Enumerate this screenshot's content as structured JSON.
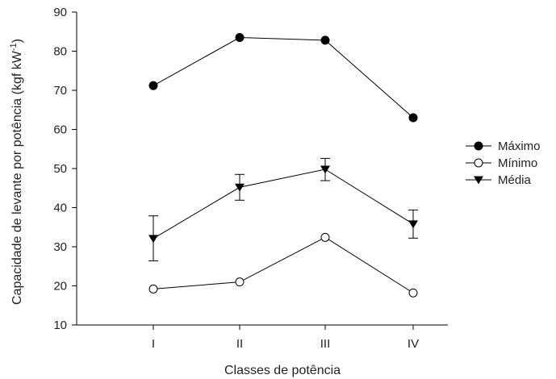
{
  "chart_data": {
    "type": "line",
    "title": "",
    "xlabel": "Classes de potência",
    "ylabel": "Capacidade de levante por potência (kgf kW",
    "ylabel_superscript": "-1",
    "ylabel_close": ")",
    "categories": [
      "I",
      "II",
      "III",
      "IV"
    ],
    "yticks": [
      10,
      20,
      30,
      40,
      50,
      60,
      70,
      80,
      90
    ],
    "ylim": [
      10,
      90
    ],
    "grid": false,
    "legend_position": "right",
    "series": [
      {
        "name": "Máximo",
        "marker": "filled-circle",
        "values": [
          71.2,
          83.5,
          82.8,
          63.0
        ]
      },
      {
        "name": "Mínimo",
        "marker": "open-circle",
        "values": [
          19.2,
          21.0,
          32.4,
          18.2
        ]
      },
      {
        "name": "Média",
        "marker": "filled-triangle-down",
        "values": [
          32.1,
          45.2,
          49.8,
          35.8
        ],
        "error_low": [
          26.4,
          41.9,
          46.9,
          32.2
        ],
        "error_high": [
          37.9,
          48.5,
          52.6,
          39.4
        ]
      }
    ]
  }
}
